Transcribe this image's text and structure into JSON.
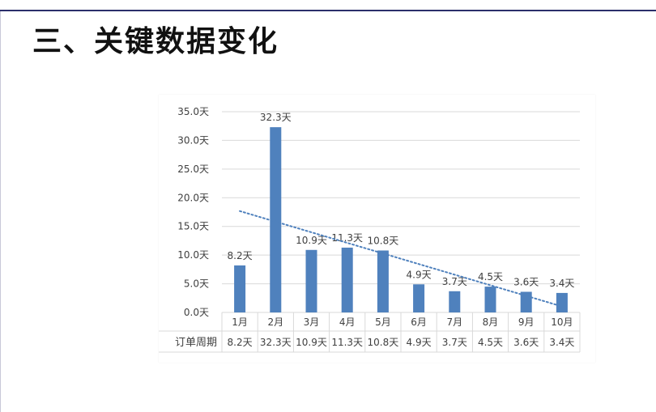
{
  "slide": {
    "title": "三、关键数据变化"
  },
  "colors": {
    "bar": "#4f81bd",
    "trendline": "#4f81bd",
    "grid": "#d9d9d9",
    "text": "#404040",
    "title_rule": "#2b2f6b"
  },
  "chart_data": {
    "type": "bar",
    "categories": [
      "1月",
      "2月",
      "3月",
      "4月",
      "5月",
      "6月",
      "7月",
      "8月",
      "9月",
      "10月"
    ],
    "series": [
      {
        "name": "订单周期",
        "values": [
          8.2,
          32.3,
          10.9,
          11.3,
          10.8,
          4.9,
          3.7,
          4.5,
          3.6,
          3.4
        ],
        "data_labels": [
          "8.2天",
          "32.3天",
          "10.9天",
          "11.3天",
          "10.8天",
          "4.9天",
          "3.7天",
          "4.5天",
          "3.6天",
          "3.4天"
        ]
      }
    ],
    "yticks": [
      "0.0天",
      "5.0天",
      "10.0天",
      "15.0天",
      "20.0天",
      "25.0天",
      "30.0天",
      "35.0天"
    ],
    "ylim": [
      0,
      35
    ],
    "grid": true,
    "trendline": "linear",
    "data_table": {
      "row_label": "订单周期",
      "cells": [
        "8.2天",
        "32.3天",
        "10.9天",
        "11.3天",
        "10.8天",
        "4.9天",
        "3.7天",
        "4.5天",
        "3.6天",
        "3.4天"
      ]
    }
  }
}
